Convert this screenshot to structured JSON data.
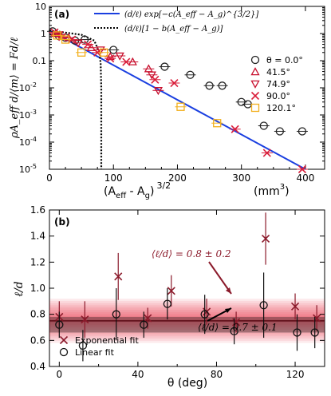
{
  "colors": {
    "fit_line": "#1a3fe0",
    "theta_0": "#222222",
    "theta_41": "#c8102e",
    "theta_74": "#c8102e",
    "theta_90": "#d91e3a",
    "theta_120": "#f2b01e",
    "exp_marker": "#8b1a2b",
    "lin_marker": "#111111",
    "band_red": "#e8203a",
    "band_line": "#111111"
  },
  "chart_data": [
    {
      "type": "scatter",
      "panel_label": "(a)",
      "ylabel": "ρA_eff d/⟨m⟩ = Fd/ℓ",
      "xlabel_main": "(A",
      "xlabel_sub1": "eff",
      "xlabel_mid": " - A",
      "xlabel_sub2": "g",
      "xlabel_close": ")",
      "xlabel_exp": "3/2",
      "xunit_main": "(mm",
      "xunit_exp": "3",
      "xunit_close": ")",
      "xlim": [
        0,
        430
      ],
      "ylim_exp": [
        -5,
        1
      ],
      "yscale": "log",
      "x_ticks": [
        0,
        100,
        200,
        300,
        400
      ],
      "y_ticks": [
        {
          "exp": 1,
          "label": "10"
        },
        {
          "exp": 0,
          "label": "1"
        },
        {
          "exp": -1,
          "label": "0.1"
        },
        {
          "exp": -2,
          "label": "10"
        },
        {
          "exp": -3,
          "label": "10"
        },
        {
          "exp": -4,
          "label": "10"
        },
        {
          "exp": -5,
          "label": "10"
        }
      ],
      "y_tick_exponents": [
        "",
        "",
        "",
        "-2",
        "-3",
        "-4",
        "-5"
      ],
      "legend_fits": [
        {
          "label": "(d/ℓ) exp[−c(A_eff − A_g)^{3/2}]",
          "style": "solid"
        },
        {
          "label": "(d/ℓ)[1 − b(A_eff − A_g)]",
          "style": "dotted"
        }
      ],
      "legend_series": [
        {
          "label": "θ = 0.0°",
          "marker": "circle"
        },
        {
          "label": "41.5°",
          "marker": "triangle-up"
        },
        {
          "label": "74.9°",
          "marker": "triangle-down"
        },
        {
          "label": "90.0°",
          "marker": "x"
        },
        {
          "label": "120.1°",
          "marker": "square"
        }
      ],
      "fit_exp": {
        "y0": 1.3,
        "x_end": 400,
        "y_end": 1e-05
      },
      "fit_linear": [
        [
          0,
          1.3
        ],
        [
          50,
          0.9
        ],
        [
          70,
          0.55
        ],
        [
          78,
          0.2
        ],
        [
          80,
          0.08
        ],
        [
          81,
          0.01
        ],
        [
          81,
          1e-05
        ]
      ],
      "series": [
        {
          "name": "θ = 0.0°",
          "marker": "circle",
          "points": [
            [
              5,
              1.2
            ],
            [
              15,
              0.8
            ],
            [
              25,
              0.7
            ],
            [
              40,
              0.55
            ],
            [
              55,
              0.6
            ],
            [
              100,
              0.25
            ],
            [
              180,
              0.06
            ],
            [
              220,
              0.03
            ],
            [
              250,
              0.012
            ],
            [
              270,
              0.012
            ],
            [
              300,
              0.003
            ],
            [
              310,
              0.0025
            ],
            [
              335,
              0.0004
            ],
            [
              360,
              0.00025
            ],
            [
              395,
              0.00025
            ]
          ]
        },
        {
          "name": "41.5°",
          "marker": "triangle-up",
          "points": [
            [
              10,
              1.0
            ],
            [
              30,
              0.7
            ],
            [
              65,
              0.3
            ],
            [
              95,
              0.14
            ],
            [
              130,
              0.09
            ],
            [
              155,
              0.05
            ]
          ]
        },
        {
          "name": "74.9°",
          "marker": "triangle-down",
          "points": [
            [
              15,
              0.9
            ],
            [
              45,
              0.45
            ],
            [
              80,
              0.25
            ],
            [
              110,
              0.15
            ],
            [
              160,
              0.03
            ],
            [
              170,
              0.008
            ]
          ]
        },
        {
          "name": "90.0°",
          "marker": "x",
          "points": [
            [
              8,
              1.1
            ],
            [
              20,
              0.75
            ],
            [
              35,
              0.6
            ],
            [
              60,
              0.4
            ],
            [
              75,
              0.2
            ],
            [
              95,
              0.12
            ],
            [
              120,
              0.09
            ],
            [
              165,
              0.02
            ],
            [
              195,
              0.015
            ],
            [
              290,
              0.0003
            ],
            [
              340,
              4e-05
            ],
            [
              395,
              1e-05
            ]
          ]
        },
        {
          "name": "120.1°",
          "marker": "square",
          "points": [
            [
              12,
              0.85
            ],
            [
              25,
              0.6
            ],
            [
              50,
              0.2
            ],
            [
              85,
              0.2
            ],
            [
              205,
              0.002
            ],
            [
              262,
              0.0005
            ]
          ]
        }
      ]
    },
    {
      "type": "scatter",
      "panel_label": "(b)",
      "ylabel": "ℓ/d",
      "xlabel": "θ (deg)",
      "xlim": [
        -5,
        135
      ],
      "ylim": [
        0.4,
        1.6
      ],
      "x_ticks": [
        0,
        40,
        80,
        120
      ],
      "y_ticks": [
        0.4,
        0.6,
        0.8,
        1.0,
        1.2,
        1.4,
        1.6
      ],
      "y_tick_labels": [
        "0.4",
        "0.6",
        "0.8",
        "1.0",
        "1.2",
        "1.4",
        "1.6"
      ],
      "annotation_exp": "⟨ℓ/d⟩ = 0.8 ± 0.2",
      "annotation_lin": "⟨ℓ/d⟩ = 0.7 ± 0.1",
      "band": {
        "mean": 0.75,
        "sd": 0.17,
        "lin_mean": 0.72,
        "lin_sd": 0.06
      },
      "legend": [
        {
          "label": "Exponential fit",
          "marker": "x"
        },
        {
          "label": "Linear fit",
          "marker": "circle"
        }
      ],
      "series": [
        {
          "name": "Exponential fit",
          "marker": "x",
          "points": [
            [
              0,
              0.78,
              0.12
            ],
            [
              13,
              0.76,
              0.14
            ],
            [
              30,
              1.09,
              0.18
            ],
            [
              45,
              0.77,
              0.08
            ],
            [
              57,
              0.98,
              0.12
            ],
            [
              75,
              0.82,
              0.1
            ],
            [
              90,
              0.74,
              0.08
            ],
            [
              105,
              1.38,
              0.2
            ],
            [
              120,
              0.86,
              0.1
            ],
            [
              131,
              0.77,
              0.1
            ]
          ]
        },
        {
          "name": "Linear fit",
          "marker": "circle",
          "points": [
            [
              0,
              0.72,
              0.1
            ],
            [
              12,
              0.56,
              0.12
            ],
            [
              29,
              0.8,
              0.2
            ],
            [
              43,
              0.72,
              0.1
            ],
            [
              55,
              0.88,
              0.12
            ],
            [
              74,
              0.8,
              0.15
            ],
            [
              89,
              0.67,
              0.1
            ],
            [
              104,
              0.87,
              0.25
            ],
            [
              121,
              0.66,
              0.14
            ],
            [
              130,
              0.66,
              0.12
            ]
          ]
        }
      ]
    }
  ]
}
